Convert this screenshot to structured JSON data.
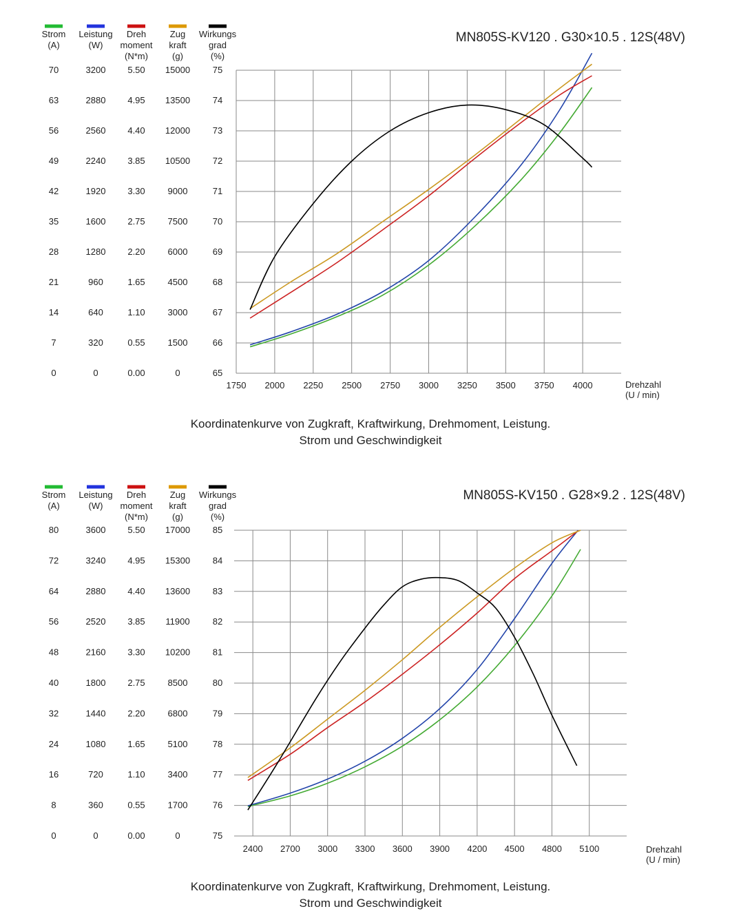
{
  "chart_data": [
    {
      "type": "line",
      "title": "MN805S-KV120 . G30×10.5 . 12S(48V)",
      "caption": [
        "Koordinatenkurve von Zugkraft, Kraftwirkung, Drehmoment, Leistung.",
        "Strom und Geschwindigkeit"
      ],
      "xlabel": [
        "Drehzahl",
        "(U / min)"
      ],
      "xticks": [
        1750,
        2000,
        2250,
        2500,
        2750,
        3000,
        3250,
        3500,
        3750,
        4000
      ],
      "xlim": [
        1750,
        4250
      ],
      "axes": [
        {
          "key": "strom",
          "header": [
            "Strom",
            "(A)"
          ],
          "color": "#22bb33",
          "ticks": [
            "70",
            "63",
            "56",
            "49",
            "42",
            "35",
            "28",
            "21",
            "14",
            "7",
            "0"
          ]
        },
        {
          "key": "leistung",
          "header": [
            "Leistung",
            "(W)"
          ],
          "color": "#2233dd",
          "ticks": [
            "3200",
            "2880",
            "2560",
            "2240",
            "1920",
            "1600",
            "1280",
            "960",
            "640",
            "320",
            "0"
          ]
        },
        {
          "key": "dreh",
          "header": [
            "Dreh",
            "moment",
            "(N*m)"
          ],
          "color": "#cc1111",
          "ticks": [
            "5.50",
            "4.95",
            "4.40",
            "3.85",
            "3.30",
            "2.75",
            "2.20",
            "1.65",
            "1.10",
            "0.55",
            "0.00"
          ]
        },
        {
          "key": "zug",
          "header": [
            "Zug",
            "kraft",
            "(g)"
          ],
          "color": "#dd9900",
          "ticks": [
            "15000",
            "13500",
            "12000",
            "10500",
            "9000",
            "7500",
            "6000",
            "4500",
            "3000",
            "1500",
            "0"
          ]
        },
        {
          "key": "wirk",
          "header": [
            "Wirkungs",
            "grad",
            "(%)"
          ],
          "color": "#000000",
          "ticks": [
            "75",
            "74",
            "73",
            "72",
            "71",
            "70",
            "69",
            "68",
            "67",
            "66",
            "65"
          ]
        }
      ],
      "series": [
        {
          "axis": "strom",
          "color": "#44aa33",
          "x": [
            1840,
            2100,
            2400,
            2700,
            3000,
            3300,
            3600,
            3850,
            4060
          ],
          "y": [
            6.1,
            9.0,
            13.0,
            18.0,
            25.0,
            34.0,
            44.7,
            55.5,
            66.0
          ]
        },
        {
          "axis": "leistung",
          "color": "#2244aa",
          "x": [
            1840,
            2100,
            2400,
            2700,
            3000,
            3300,
            3600,
            3850,
            4060
          ],
          "y": [
            300,
            435,
            620,
            860,
            1190,
            1650,
            2200,
            2780,
            3380
          ]
        },
        {
          "axis": "dreh",
          "color": "#cc2222",
          "x": [
            1840,
            2100,
            2400,
            2700,
            3000,
            3300,
            3600,
            3850,
            4060
          ],
          "y": [
            1.0,
            1.46,
            2.0,
            2.6,
            3.22,
            3.9,
            4.55,
            5.05,
            5.4
          ]
        },
        {
          "axis": "zug",
          "color": "#cc9922",
          "x": [
            1840,
            2100,
            2400,
            2700,
            3000,
            3300,
            3600,
            3850,
            4060
          ],
          "y": [
            3200,
            4500,
            5900,
            7500,
            9100,
            10800,
            12600,
            14100,
            15300
          ]
        },
        {
          "axis": "wirk",
          "color": "#000000",
          "x": [
            1840,
            2000,
            2250,
            2500,
            2750,
            3000,
            3250,
            3500,
            3750,
            4000,
            4060
          ],
          "y": [
            67.1,
            68.85,
            70.6,
            72.0,
            73.0,
            73.6,
            73.85,
            73.7,
            73.2,
            72.1,
            71.8
          ]
        }
      ]
    },
    {
      "type": "line",
      "title": "MN805S-KV150 . G28×9.2 . 12S(48V)",
      "caption": [
        "Koordinatenkurve von Zugkraft, Kraftwirkung, Drehmoment, Leistung.",
        "Strom und Geschwindigkeit"
      ],
      "xlabel": [
        "Drehzahl",
        "(U / min)"
      ],
      "xticks": [
        2400,
        2700,
        3000,
        3300,
        3600,
        3900,
        4200,
        4500,
        4800,
        5100
      ],
      "xlim": [
        2250,
        5400
      ],
      "axes": [
        {
          "key": "strom",
          "header": [
            "Strom",
            "(A)"
          ],
          "color": "#22bb33",
          "ticks": [
            "80",
            "72",
            "64",
            "56",
            "48",
            "40",
            "32",
            "24",
            "16",
            "8",
            "0"
          ]
        },
        {
          "key": "leistung",
          "header": [
            "Leistung",
            "(W)"
          ],
          "color": "#2233dd",
          "ticks": [
            "3600",
            "3240",
            "2880",
            "2520",
            "2160",
            "1800",
            "1440",
            "1080",
            "720",
            "360",
            "0"
          ]
        },
        {
          "key": "dreh",
          "header": [
            "Dreh",
            "moment",
            "(N*m)"
          ],
          "color": "#cc1111",
          "ticks": [
            "5.50",
            "4.95",
            "4.40",
            "3.85",
            "3.30",
            "2.75",
            "2.20",
            "1.65",
            "1.10",
            "0.55",
            "0.00"
          ]
        },
        {
          "key": "zug",
          "header": [
            "Zug",
            "kraft",
            "(g)"
          ],
          "color": "#dd9900",
          "ticks": [
            "17000",
            "15300",
            "13600",
            "11900",
            "10200",
            "8500",
            "6800",
            "5100",
            "3400",
            "1700",
            "0"
          ]
        },
        {
          "key": "wirk",
          "header": [
            "Wirkungs",
            "grad",
            "(%)"
          ],
          "color": "#000000",
          "ticks": [
            "85",
            "84",
            "83",
            "82",
            "81",
            "80",
            "79",
            "78",
            "77",
            "76",
            "75"
          ]
        }
      ],
      "series": [
        {
          "axis": "strom",
          "color": "#44aa33",
          "x": [
            2360,
            2700,
            3000,
            3300,
            3600,
            3900,
            4200,
            4500,
            4800,
            5030
          ],
          "y": [
            7.7,
            10.5,
            13.8,
            18.1,
            23.5,
            30.4,
            39.0,
            49.8,
            62.8,
            75.0
          ]
        },
        {
          "axis": "leistung",
          "color": "#2244aa",
          "x": [
            2360,
            2700,
            3000,
            3300,
            3600,
            3900,
            4200,
            4500,
            4800,
            5010
          ],
          "y": [
            355,
            505,
            670,
            880,
            1150,
            1500,
            1960,
            2560,
            3210,
            3600
          ]
        },
        {
          "axis": "dreh",
          "color": "#cc2222",
          "x": [
            2360,
            2700,
            3000,
            3300,
            3600,
            3900,
            4200,
            4500,
            4800,
            5010
          ],
          "y": [
            1.0,
            1.47,
            1.95,
            2.41,
            2.91,
            3.44,
            4.01,
            4.63,
            5.13,
            5.49
          ]
        },
        {
          "axis": "zug",
          "color": "#cc9922",
          "x": [
            2360,
            2700,
            3000,
            3300,
            3600,
            3900,
            4200,
            4500,
            4800,
            5030
          ],
          "y": [
            3250,
            4900,
            6500,
            8100,
            9800,
            11600,
            13300,
            14900,
            16300,
            17000
          ]
        },
        {
          "axis": "wirk",
          "color": "#000000",
          "x": [
            2360,
            2600,
            2900,
            3100,
            3300,
            3450,
            3600,
            3750,
            3900,
            4050,
            4200,
            4350,
            4500,
            4650,
            4800,
            5000
          ],
          "y": [
            75.85,
            77.4,
            79.45,
            80.7,
            81.8,
            82.55,
            83.15,
            83.4,
            83.45,
            83.35,
            82.95,
            82.45,
            81.5,
            80.3,
            78.95,
            77.3
          ]
        }
      ]
    }
  ]
}
